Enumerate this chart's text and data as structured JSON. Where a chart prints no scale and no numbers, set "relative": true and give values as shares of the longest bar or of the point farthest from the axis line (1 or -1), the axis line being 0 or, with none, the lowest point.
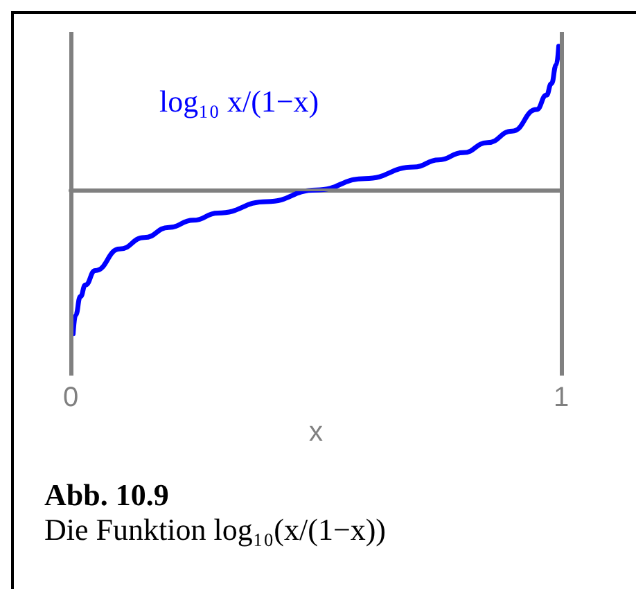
{
  "chart_data": {
    "type": "line",
    "relative": true,
    "xlabel": "x",
    "xlim": [
      0,
      1
    ],
    "xticks": [
      0,
      1
    ],
    "x": [
      0.005,
      0.01,
      0.02,
      0.03,
      0.05,
      0.1,
      0.15,
      0.2,
      0.25,
      0.3,
      0.4,
      0.5,
      0.6,
      0.7,
      0.75,
      0.8,
      0.85,
      0.9,
      0.95,
      0.97,
      0.98,
      0.99,
      0.995
    ],
    "series": [
      {
        "color": "#0000ff",
        "values": [
          -1,
          -0.87,
          -0.74,
          -0.66,
          -0.56,
          -0.41,
          -0.33,
          -0.26,
          -0.21,
          -0.16,
          -0.08,
          0,
          0.08,
          0.16,
          0.21,
          0.26,
          0.33,
          0.41,
          0.56,
          0.66,
          0.74,
          0.87,
          1
        ]
      }
    ],
    "ref_lines": [
      {
        "axis": "y",
        "value": 0,
        "color": "#808080"
      }
    ],
    "marker": "none",
    "line_style": "solid",
    "annotations": [
      "log₁₀ x/(1−x)",
      "Abb. 10.9",
      "Die Funktion log₁₀(x/(1−x))"
    ]
  }
}
